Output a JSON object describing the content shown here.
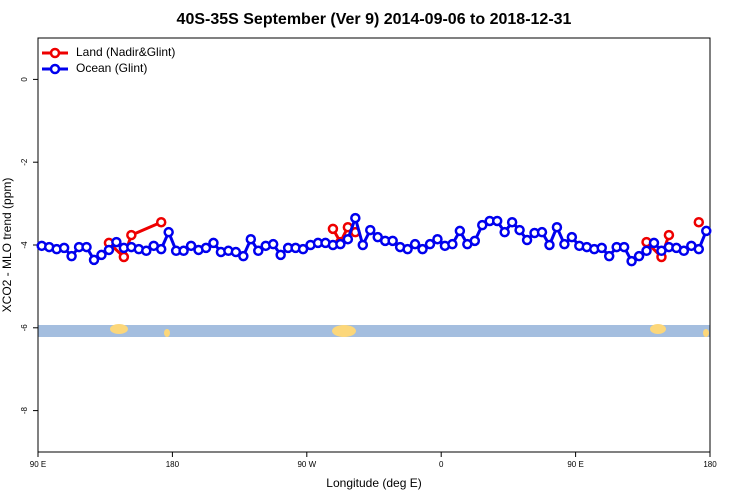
{
  "chart_data": {
    "type": "line",
    "title": "40S-35S September (Ver 9)   2014-09-06 to 2018-12-31",
    "xlabel": "Longitude (deg E)",
    "ylabel": "XCO2 - MLO trend (ppm)",
    "xlim": [
      90,
      540
    ],
    "ylim": [
      -9,
      1
    ],
    "xticks": [
      {
        "value": 90,
        "label": "90 E"
      },
      180,
      {
        "value": 270,
        "label": "90 W"
      },
      {
        "value": 360,
        "label": "0"
      },
      {
        "value": 450,
        "label": "90 E"
      },
      {
        "value": 540,
        "label": "180"
      }
    ],
    "yticks": [
      0,
      -2,
      -4,
      -6,
      -8
    ],
    "legend": "upper left",
    "series": [
      {
        "name": "Land (Nadir&Glint)",
        "color": "#ee0000",
        "x": [
          137.5,
          147.5,
          152.5,
          172.5,
          null,
          287.5,
          292.5,
          297.5,
          302.5,
          null,
          497.5,
          507.5,
          512.5,
          null,
          532.5
        ],
        "values": [
          -3.95,
          -4.29,
          -3.76,
          -3.45,
          null,
          -3.61,
          -3.93,
          -3.57,
          -3.69,
          null,
          -3.93,
          -4.29,
          -3.76,
          null,
          -3.45
        ]
      },
      {
        "name": "Ocean (Glint)",
        "color": "#0000ee",
        "x": [
          92.5,
          97.5,
          102.5,
          107.5,
          112.5,
          117.5,
          122.5,
          127.5,
          132.5,
          137.5,
          142.5,
          147.5,
          152.5,
          157.5,
          162.5,
          167.5,
          172.5,
          177.5,
          182.5,
          187.5,
          192.5,
          197.5,
          202.5,
          207.5,
          212.5,
          217.5,
          222.5,
          227.5,
          232.5,
          237.5,
          242.5,
          247.5,
          252.5,
          257.5,
          262.5,
          267.5,
          272.5,
          277.5,
          282.5,
          287.5,
          292.5,
          297.5,
          302.5,
          307.5,
          312.5,
          317.5,
          322.5,
          327.5,
          332.5,
          337.5,
          342.5,
          347.5,
          352.5,
          357.5,
          362.5,
          367.5,
          372.5,
          377.5,
          382.5,
          387.5,
          392.5,
          397.5,
          402.5,
          407.5,
          412.5,
          417.5,
          422.5,
          427.5,
          432.5,
          437.5,
          442.5,
          447.5,
          452.5,
          457.5,
          462.5,
          467.5,
          472.5,
          477.5,
          482.5,
          487.5,
          492.5,
          497.5,
          502.5,
          507.5,
          512.5,
          517.5,
          522.5,
          527.5,
          532.5,
          537.5
        ],
        "values": [
          -4.02,
          -4.05,
          -4.1,
          -4.07,
          -4.27,
          -4.05,
          -4.05,
          -4.36,
          -4.24,
          -4.12,
          -3.93,
          -4.07,
          -4.05,
          -4.1,
          -4.14,
          -4.02,
          -4.1,
          -3.69,
          -4.14,
          -4.14,
          -4.02,
          -4.12,
          -4.07,
          -3.95,
          -4.17,
          -4.14,
          -4.17,
          -4.27,
          -3.86,
          -4.14,
          -4.02,
          -3.98,
          -4.24,
          -4.07,
          -4.07,
          -4.1,
          -4.0,
          -3.95,
          -3.95,
          -4.0,
          -3.98,
          -3.86,
          -3.35,
          -4.0,
          -3.64,
          -3.81,
          -3.9,
          -3.9,
          -4.05,
          -4.1,
          -3.98,
          -4.1,
          -3.98,
          -3.86,
          -4.02,
          -3.98,
          -3.66,
          -3.98,
          -3.9,
          -3.52,
          -3.42,
          -3.42,
          -3.69,
          -3.45,
          -3.64,
          -3.88,
          -3.71,
          -3.69,
          -4.0,
          -3.57,
          -3.98,
          -3.81,
          -4.02,
          -4.05,
          -4.1,
          -4.07,
          -4.27,
          -4.05,
          -4.05,
          -4.39,
          -4.27,
          -4.14,
          -3.95,
          -4.14,
          -4.05,
          -4.07,
          -4.14,
          -4.02,
          -4.1,
          -3.66
        ]
      }
    ]
  }
}
